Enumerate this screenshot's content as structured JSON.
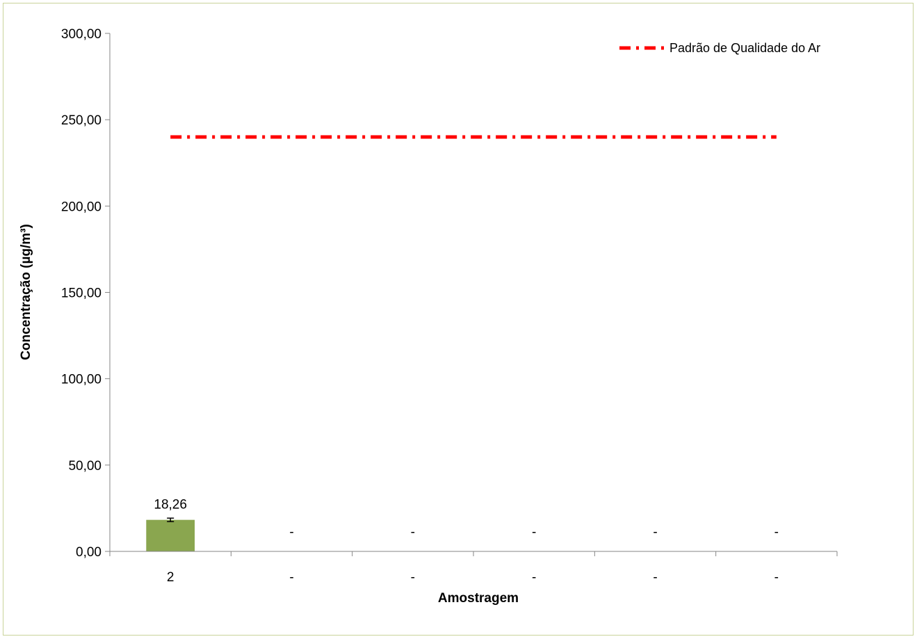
{
  "chart_data": {
    "type": "bar",
    "categories": [
      "2",
      "-",
      "-",
      "-",
      "-",
      "-"
    ],
    "values": [
      18.26,
      null,
      null,
      null,
      null,
      null
    ],
    "data_labels": [
      "18,26",
      "-",
      "-",
      "-",
      "-",
      "-"
    ],
    "error_bars": [
      1.0,
      null,
      null,
      null,
      null,
      null
    ],
    "xlabel": "Amostragem",
    "ylabel": "Concentração (µg/m³)",
    "ylim": [
      0,
      300
    ],
    "yticks": [
      0,
      50,
      100,
      150,
      200,
      250,
      300
    ],
    "ytick_labels": [
      "0,00",
      "50,00",
      "100,00",
      "150,00",
      "200,00",
      "250,00",
      "300,00"
    ],
    "reference_line": {
      "name": "Padrão de Qualidade do Ar",
      "value": 240,
      "style": "dash-dot",
      "color": "#ff0000"
    },
    "legend": {
      "entries": [
        "Padrão de Qualidade do Ar"
      ],
      "placement": "top-right"
    },
    "bar_color": "#8aa64f",
    "grid": false
  }
}
